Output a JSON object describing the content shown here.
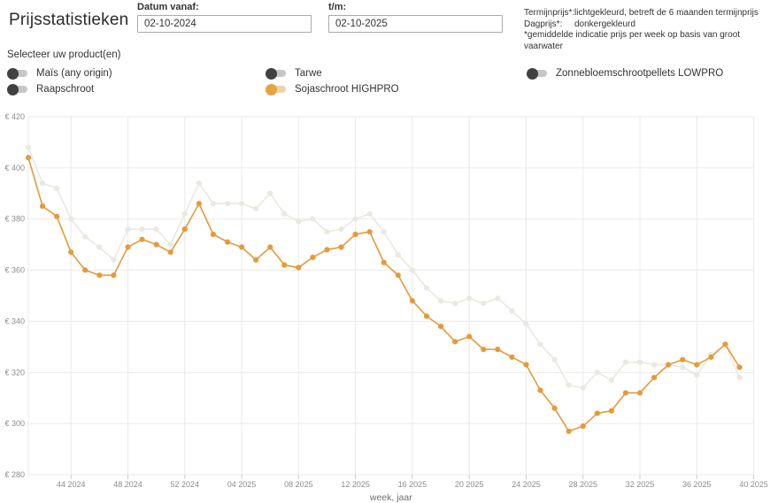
{
  "header": {
    "title": "Prijsstatistieken",
    "date_from_label": "Datum vanaf:",
    "date_from_value": "02-10-2024",
    "date_to_label": "t/m:",
    "date_to_value": "02-10-2025",
    "legend_note": {
      "term_label": "Termijnprijs*:",
      "term_text": "lichtgekleurd, betreft de 6 maanden termijnprijs",
      "day_label": "Dagprijs*:",
      "day_text": "donkergekleurd",
      "footnote": "*gemiddelde indicatie prijs per week op basis van groot vaarwater"
    }
  },
  "products": {
    "section_label": "Selecteer uw product(en)",
    "items": [
      {
        "id": "mais",
        "label": "Maïs (any origin)",
        "selected": false
      },
      {
        "id": "raapschroot",
        "label": "Raapschroot",
        "selected": false
      },
      {
        "id": "tarwe",
        "label": "Tarwe",
        "selected": false
      },
      {
        "id": "sojaschroot-highpro",
        "label": "Sojaschroot HIGHPRO",
        "selected": true
      },
      {
        "id": "zonnebloemschrootpellets-lowpro",
        "label": "Zonnebloemschrootpellets LOWPRO",
        "selected": false
      }
    ]
  },
  "colors": {
    "accent_orange": "#e59a3a",
    "accent_light": "#e9e9e1",
    "toggle_off_knob": "#414141",
    "toggle_off_track": "#c7c7c7",
    "grid": "#eaeaea",
    "axis_text": "#8c8c8c"
  },
  "chart_data": {
    "type": "line",
    "xlabel": "week, jaar",
    "currency_prefix": "€ ",
    "ylim": [
      280,
      420
    ],
    "y_ticks": [
      280,
      300,
      320,
      340,
      360,
      380,
      400,
      420
    ],
    "x_tick_labels": [
      "44 2024",
      "48 2024",
      "52 2024",
      "04 2025",
      "08 2025",
      "12 2025",
      "16 2025",
      "20 2025",
      "24 2025",
      "28 2025",
      "32 2025",
      "36 2025",
      "40 2025"
    ],
    "x_tick_indices": [
      3,
      7,
      11,
      15,
      19,
      23,
      27,
      31,
      35,
      39,
      43,
      47,
      51
    ],
    "weeks": [
      "41 2024",
      "42 2024",
      "43 2024",
      "44 2024",
      "45 2024",
      "46 2024",
      "47 2024",
      "48 2024",
      "49 2024",
      "50 2024",
      "51 2024",
      "52 2024",
      "01 2025",
      "02 2025",
      "03 2025",
      "04 2025",
      "05 2025",
      "06 2025",
      "07 2025",
      "08 2025",
      "09 2025",
      "10 2025",
      "11 2025",
      "12 2025",
      "13 2025",
      "14 2025",
      "15 2025",
      "16 2025",
      "17 2025",
      "18 2025",
      "19 2025",
      "20 2025",
      "21 2025",
      "22 2025",
      "23 2025",
      "24 2025",
      "25 2025",
      "26 2025",
      "27 2025",
      "28 2025",
      "29 2025",
      "30 2025",
      "31 2025",
      "32 2025",
      "33 2025",
      "34 2025",
      "35 2025",
      "36 2025",
      "37 2025",
      "38 2025",
      "39 2025"
    ],
    "series": [
      {
        "name": "Termijnprijs Sojaschroot HIGHPRO (6 maanden, lichtgekleurd)",
        "color": "#e9e9e1",
        "values": [
          408,
          394,
          392,
          380,
          373,
          369,
          364,
          376,
          376,
          376,
          370,
          382,
          394,
          386,
          386,
          386,
          384,
          390,
          382,
          379,
          380,
          375,
          376,
          380,
          382,
          375,
          366,
          360,
          353,
          348,
          347,
          349,
          347,
          349,
          344,
          339,
          331,
          325,
          315,
          314,
          320,
          317,
          324,
          324,
          323,
          323,
          322,
          319,
          327,
          331,
          318
        ]
      },
      {
        "name": "Dagprijs Sojaschroot HIGHPRO (donkergekleurd)",
        "color": "#e59a3a",
        "values": [
          404,
          385,
          381,
          367,
          360,
          358,
          358,
          369,
          372,
          370,
          367,
          376,
          386,
          374,
          371,
          369,
          364,
          369,
          362,
          361,
          365,
          368,
          369,
          374,
          375,
          363,
          358,
          348,
          342,
          338,
          332,
          334,
          329,
          329,
          326,
          323,
          313,
          306,
          297,
          299,
          304,
          305,
          312,
          312,
          318,
          323,
          325,
          323,
          326,
          331,
          322
        ]
      }
    ],
    "legend_position": "none",
    "grid": true
  }
}
